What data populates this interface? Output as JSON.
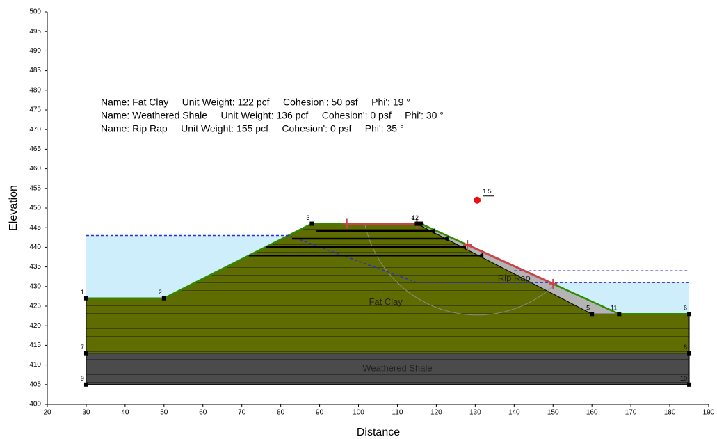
{
  "chart_data": {
    "type": "slope-section",
    "xlabel": "Distance",
    "ylabel": "Elevation",
    "xlim": [
      20,
      190
    ],
    "xticks": [
      20,
      30,
      40,
      50,
      60,
      70,
      80,
      90,
      100,
      110,
      120,
      130,
      140,
      150,
      160,
      170,
      180,
      190
    ],
    "ylim": [
      400,
      500
    ],
    "yticks": [
      400,
      405,
      410,
      415,
      420,
      425,
      430,
      435,
      440,
      445,
      450,
      455,
      460,
      465,
      470,
      475,
      480,
      485,
      490,
      495,
      500
    ],
    "legend_lines": [
      "Name: Fat Clay     Unit Weight: 122 pcf     Cohesion': 50 psf     Phi': 19 °",
      "Name: Weathered Shale     Unit Weight: 136 pcf     Cohesion': 0 psf     Phi': 30 °",
      "Name: Rip Rap     Unit Weight: 155 pcf     Cohesion': 0 psf     Phi': 35 °"
    ],
    "regions": [
      {
        "name": "Weathered Shale",
        "color": "#4b4b4b",
        "x": [
          30,
          30,
          185,
          185
        ],
        "y": [
          405,
          413,
          413,
          405
        ],
        "label_at": [
          110,
          409
        ]
      },
      {
        "name": "Fat Clay",
        "color": "#5f6d00",
        "x": [
          30,
          30,
          50,
          88,
          115,
          160,
          167,
          185,
          185
        ],
        "y": [
          413,
          427,
          427,
          446,
          446,
          423,
          423,
          423,
          413
        ],
        "label_at": [
          107,
          426
        ]
      },
      {
        "name": "Rip Rap",
        "color": "#b4b4b4",
        "x": [
          115,
          116,
          167,
          160
        ],
        "y": [
          446,
          446,
          423,
          423
        ],
        "label_at": [
          140,
          432
        ]
      }
    ],
    "water": [
      {
        "color": "#cdeefa",
        "x": [
          30,
          30,
          82,
          50
        ],
        "y": [
          427,
          443,
          443,
          427
        ]
      },
      {
        "color": "#cdeefa",
        "x": [
          149.3,
          185,
          185,
          167
        ],
        "y": [
          431,
          431,
          423,
          423
        ]
      }
    ],
    "ground": {
      "color": "#2f8a00",
      "x": [
        30,
        50,
        88,
        116,
        167,
        185
      ],
      "y": [
        427,
        427,
        446,
        446,
        423,
        423
      ]
    },
    "piezometric": [
      {
        "color": "#2b2bdc",
        "x": [
          30,
          82,
          115,
          185
        ],
        "y": [
          443,
          443,
          431,
          431
        ]
      },
      {
        "color": "#2b2bdc",
        "x": [
          140,
          185
        ],
        "y": [
          434,
          434
        ]
      }
    ],
    "reinforcements": [
      {
        "x": [
          89.2,
          119.6
        ],
        "y": [
          444.1,
          444.1
        ]
      },
      {
        "x": [
          82.9,
          123.1
        ],
        "y": [
          442.2,
          442.2
        ]
      },
      {
        "x": [
          76.3,
          127.6
        ],
        "y": [
          440.1,
          440.1
        ]
      },
      {
        "x": [
          71.8,
          132.1
        ],
        "y": [
          437.9,
          437.9
        ]
      }
    ],
    "slip_center": {
      "x": 130.5,
      "y": 452,
      "label": "1.5",
      "radius": 29.5,
      "color": "#e81010"
    },
    "entry_range": {
      "color": "#c8464a",
      "x": [
        97,
        115
      ],
      "y": [
        446,
        446
      ]
    },
    "exit_range": {
      "color": "#c8464a",
      "x": [
        128,
        150
      ],
      "y": [
        440.6,
        430.7
      ]
    },
    "points": [
      {
        "label": "1",
        "x": 30,
        "y": 427
      },
      {
        "label": "2",
        "x": 50,
        "y": 427
      },
      {
        "label": "3",
        "x": 88,
        "y": 446
      },
      {
        "label": "4",
        "x": 115,
        "y": 446
      },
      {
        "label": "12",
        "x": 116,
        "y": 446
      },
      {
        "label": "5",
        "x": 160,
        "y": 423
      },
      {
        "label": "11",
        "x": 167,
        "y": 423
      },
      {
        "label": "6",
        "x": 185,
        "y": 423
      },
      {
        "label": "7",
        "x": 30,
        "y": 413
      },
      {
        "label": "8",
        "x": 185,
        "y": 413
      },
      {
        "label": "9",
        "x": 30,
        "y": 405
      },
      {
        "label": "10",
        "x": 185,
        "y": 405
      }
    ]
  }
}
